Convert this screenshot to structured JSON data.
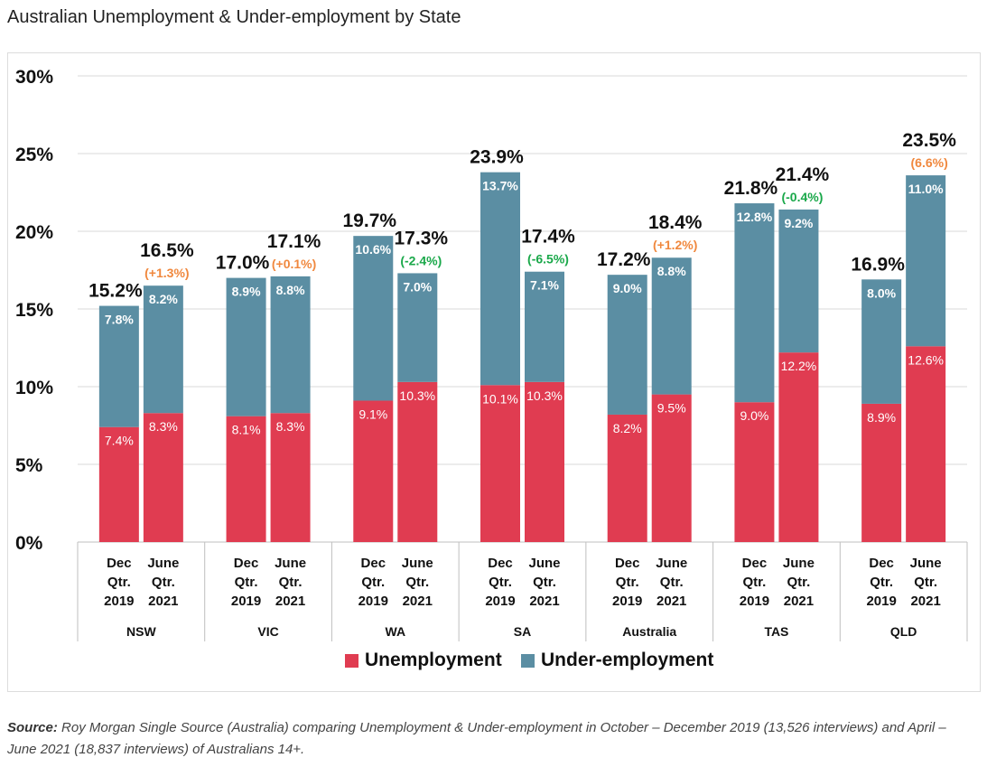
{
  "page": {
    "title": "Australian Unemployment & Under-employment by State"
  },
  "colors": {
    "unemployment": "#e03c51",
    "under_employment": "#5b8ea3",
    "increase_change": "#f0883e",
    "decrease_change": "#1aa84a",
    "gridline": "#d9d9d9",
    "axis": "#bfbfbf"
  },
  "chart_data": {
    "type": "bar",
    "stacked": true,
    "title": "Australian Unemployment & Under-employment by State",
    "ylim": [
      0,
      30
    ],
    "yticks": [
      "0%",
      "5%",
      "10%",
      "15%",
      "20%",
      "25%",
      "30%"
    ],
    "ytick_values": [
      0,
      5,
      10,
      15,
      20,
      25,
      30
    ],
    "grid": true,
    "legend_position": "bottom-center",
    "legend": [
      {
        "key": "unemployment",
        "label": "Unemployment"
      },
      {
        "key": "under_employment",
        "label": "Under-employment"
      }
    ],
    "period_labels": {
      "dec": [
        "Dec",
        "Qtr.",
        "2019"
      ],
      "june": [
        "June",
        "Qtr.",
        "2021"
      ]
    },
    "groups": [
      {
        "state": "NSW",
        "dec": {
          "unemployment": 7.4,
          "unemployment_label": "7.4%",
          "under_employment": 7.8,
          "under_label": "7.8%",
          "total_label": "15.2%"
        },
        "june": {
          "unemployment": 8.3,
          "unemployment_label": "8.3%",
          "under_employment": 8.2,
          "under_label": "8.2%",
          "total_label": "16.5%",
          "change": "(+1.3%)",
          "direction": "up"
        }
      },
      {
        "state": "VIC",
        "dec": {
          "unemployment": 8.1,
          "unemployment_label": "8.1%",
          "under_employment": 8.9,
          "under_label": "8.9%",
          "total_label": "17.0%"
        },
        "june": {
          "unemployment": 8.3,
          "unemployment_label": "8.3%",
          "under_employment": 8.8,
          "under_label": "8.8%",
          "total_label": "17.1%",
          "change": "(+0.1%)",
          "direction": "up"
        }
      },
      {
        "state": "WA",
        "dec": {
          "unemployment": 9.1,
          "unemployment_label": "9.1%",
          "under_employment": 10.6,
          "under_label": "10.6%",
          "total_label": "19.7%"
        },
        "june": {
          "unemployment": 10.3,
          "unemployment_label": "10.3%",
          "under_employment": 7.0,
          "under_label": "7.0%",
          "total_label": "17.3%",
          "change": "(-2.4%)",
          "direction": "down"
        }
      },
      {
        "state": "SA",
        "dec": {
          "unemployment": 10.1,
          "unemployment_label": "10.1%",
          "under_employment": 13.7,
          "under_label": "13.7%",
          "total_label": "23.9%"
        },
        "june": {
          "unemployment": 10.3,
          "unemployment_label": "10.3%",
          "under_employment": 7.1,
          "under_label": "7.1%",
          "total_label": "17.4%",
          "change": "(-6.5%)",
          "direction": "down"
        }
      },
      {
        "state": "Australia",
        "dec": {
          "unemployment": 8.2,
          "unemployment_label": "8.2%",
          "under_employment": 9.0,
          "under_label": "9.0%",
          "total_label": "17.2%"
        },
        "june": {
          "unemployment": 9.5,
          "unemployment_label": "9.5%",
          "under_employment": 8.8,
          "under_label": "8.8%",
          "total_label": "18.4%",
          "change": "(+1.2%)",
          "direction": "up"
        }
      },
      {
        "state": "TAS",
        "dec": {
          "unemployment": 9.0,
          "unemployment_label": "9.0%",
          "under_employment": 12.8,
          "under_label": "12.8%",
          "total_label": "21.8%"
        },
        "june": {
          "unemployment": 12.2,
          "unemployment_label": "12.2%",
          "under_employment": 9.2,
          "under_label": "9.2%",
          "total_label": "21.4%",
          "change": "(-0.4%)",
          "direction": "down"
        }
      },
      {
        "state": "QLD",
        "dec": {
          "unemployment": 8.9,
          "unemployment_label": "8.9%",
          "under_employment": 8.0,
          "under_label": "8.0%",
          "total_label": "16.9%"
        },
        "june": {
          "unemployment": 12.6,
          "unemployment_label": "12.6%",
          "under_employment": 11.0,
          "under_label": "11.0%",
          "total_label": "23.5%",
          "change": "(6.6%)",
          "direction": "up"
        }
      }
    ]
  },
  "source": {
    "label": "Source:",
    "text": " Roy Morgan Single Source (Australia) comparing Unemployment & Under-employment in October – December 2019 (13,526 interviews) and April – June 2021 (18,837 interviews) of Australians 14+."
  }
}
